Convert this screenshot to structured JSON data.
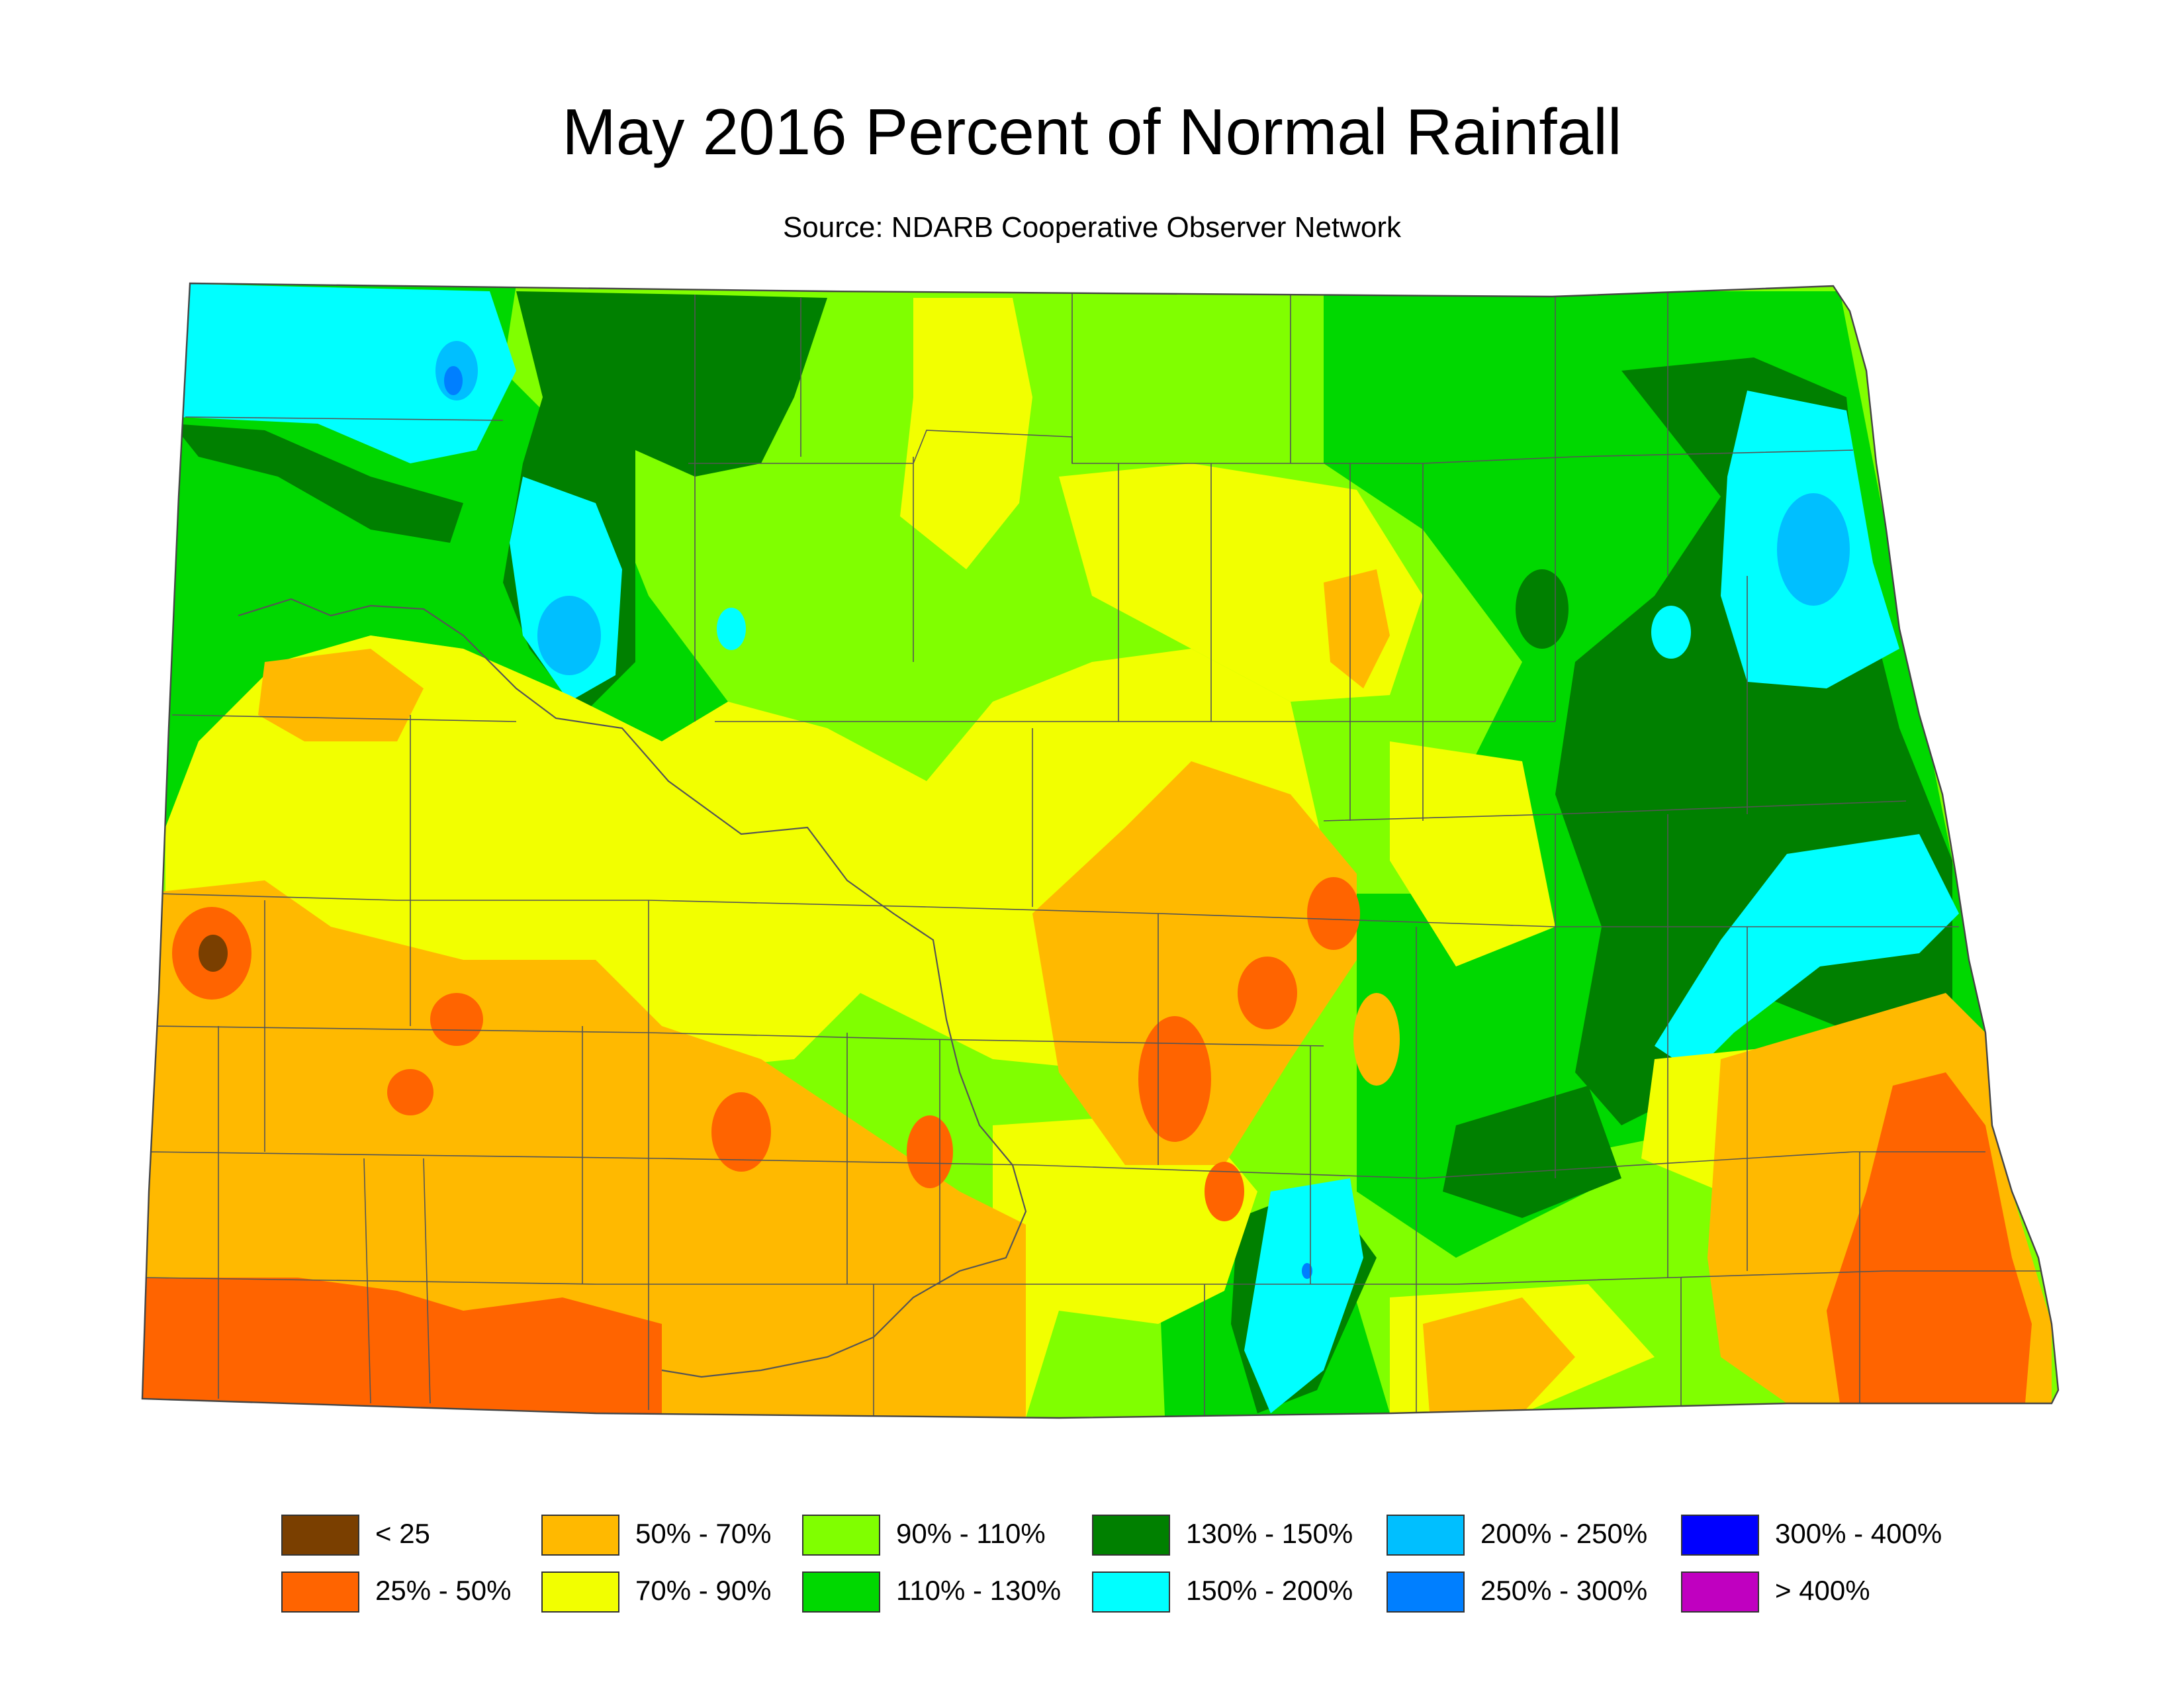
{
  "title": "May 2016 Percent of Normal Rainfall",
  "subtitle": "Source: NDARB Cooperative Observer Network",
  "legend": [
    {
      "label": "< 25",
      "color": "#7a3f00"
    },
    {
      "label": "25% - 50%",
      "color": "#ff6400"
    },
    {
      "label": "50% - 70%",
      "color": "#ffb900"
    },
    {
      "label": "70% - 90%",
      "color": "#f2ff00"
    },
    {
      "label": "90% - 110%",
      "color": "#80ff00"
    },
    {
      "label": "110% - 130%",
      "color": "#00d800"
    },
    {
      "label": "130% - 150%",
      "color": "#008000"
    },
    {
      "label": "150% - 200%",
      "color": "#00ffff"
    },
    {
      "label": "200% - 250%",
      "color": "#00bfff"
    },
    {
      "label": "250% - 300%",
      "color": "#007fff"
    },
    {
      "label": "300% - 400%",
      "color": "#0000ff"
    },
    {
      "label": "> 400%",
      "color": "#c000c0"
    }
  ]
}
